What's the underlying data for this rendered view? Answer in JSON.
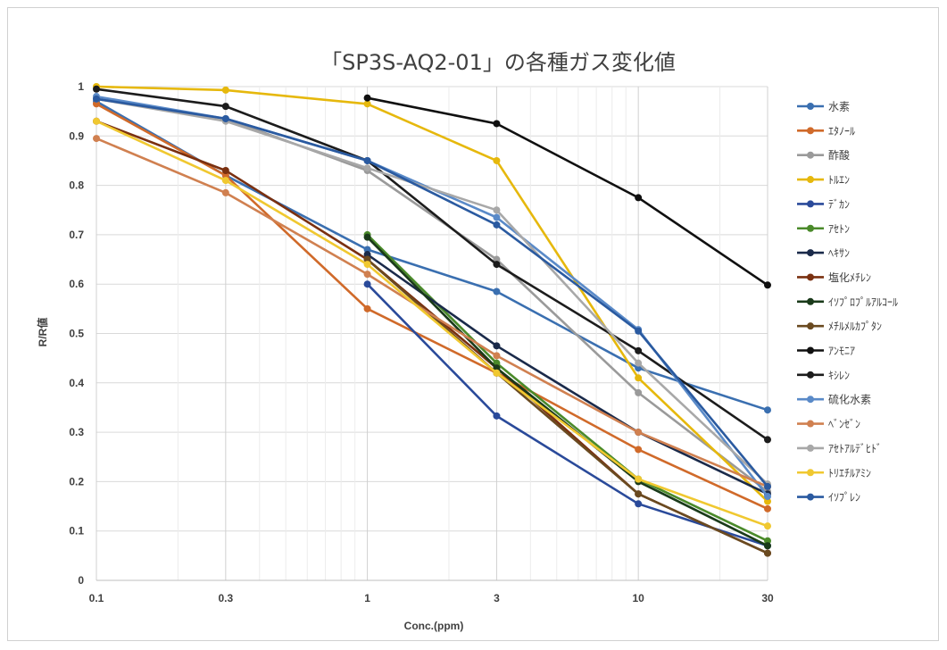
{
  "chart_data": {
    "type": "line",
    "title": "「SP3S-AQ2-01」の各種ガス変化値",
    "xlabel": "Conc.(ppm)",
    "ylabel": "R/R値",
    "x_scale": "log",
    "x_ticks": [
      "0.1",
      "0.3",
      "1",
      "3",
      "10",
      "30"
    ],
    "y_ticks": [
      "0",
      "0.1",
      "0.2",
      "0.3",
      "0.4",
      "0.5",
      "0.6",
      "0.7",
      "0.8",
      "0.9",
      "1"
    ],
    "ylim": [
      0,
      1
    ],
    "grid": true,
    "legend_position": "right",
    "series": [
      {
        "name": "水素",
        "color": "#3a6fb0",
        "x": [
          0.1,
          0.3,
          1,
          3,
          10,
          30
        ],
        "y": [
          0.97,
          0.82,
          0.67,
          0.585,
          0.43,
          0.345
        ]
      },
      {
        "name": "ｴﾀﾉｰﾙ",
        "color": "#d06a2a",
        "x": [
          0.1,
          0.3,
          1,
          3,
          10,
          30
        ],
        "y": [
          0.965,
          0.82,
          0.55,
          0.42,
          0.265,
          0.145
        ]
      },
      {
        "name": "酢酸",
        "color": "#9a9a9a",
        "x": [
          0.1,
          0.3,
          1,
          3,
          10,
          30
        ],
        "y": [
          0.975,
          0.935,
          0.83,
          0.65,
          0.38,
          0.18
        ]
      },
      {
        "name": "ﾄﾙｴﾝ",
        "color": "#e6b80c",
        "x": [
          0.1,
          0.3,
          1,
          3,
          10,
          30
        ],
        "y": [
          1.0,
          0.993,
          0.965,
          0.85,
          0.41,
          0.16
        ]
      },
      {
        "name": "ﾃﾞｶﾝ",
        "color": "#2a4a9a",
        "x": [
          1,
          3,
          10,
          30
        ],
        "y": [
          0.6,
          0.333,
          0.155,
          0.07
        ]
      },
      {
        "name": "ｱｾﾄﾝ",
        "color": "#4a8a2a",
        "x": [
          1,
          3,
          10,
          30
        ],
        "y": [
          0.7,
          0.44,
          0.205,
          0.08
        ]
      },
      {
        "name": "ﾍｷｻﾝ",
        "color": "#1a2a4a",
        "x": [
          1,
          3,
          10,
          30
        ],
        "y": [
          0.66,
          0.475,
          0.3,
          0.175
        ]
      },
      {
        "name": "塩化ﾒﾁﾚﾝ",
        "color": "#7a3010",
        "x": [
          0.1,
          0.3,
          1,
          3,
          10,
          30
        ],
        "y": [
          0.93,
          0.83,
          0.65,
          0.43,
          0.175,
          0.055
        ]
      },
      {
        "name": "ｲｿﾌﾟﾛﾌﾟﾙｱﾙｺｰﾙ",
        "color": "#1a3a1a",
        "x": [
          1,
          3,
          10,
          30
        ],
        "y": [
          0.695,
          0.43,
          0.2,
          0.07
        ]
      },
      {
        "name": "ﾒﾁﾙﾒﾙｶﾌﾟﾀﾝ",
        "color": "#6a4a20",
        "x": [
          1,
          3,
          10,
          30
        ],
        "y": [
          0.65,
          0.42,
          0.175,
          0.055
        ]
      },
      {
        "name": "ｱﾝﾓﾆｱ",
        "color": "#101010",
        "x": [
          1,
          3,
          10,
          30
        ],
        "y": [
          0.977,
          0.925,
          0.775,
          0.598
        ]
      },
      {
        "name": "ｷｼﾚﾝ",
        "color": "#1c1c1c",
        "x": [
          0.1,
          0.3,
          1,
          3,
          10,
          30
        ],
        "y": [
          0.995,
          0.96,
          0.85,
          0.64,
          0.465,
          0.285
        ]
      },
      {
        "name": "硫化水素",
        "color": "#5a8ac8",
        "x": [
          0.1,
          0.3,
          1,
          3,
          10,
          30
        ],
        "y": [
          0.98,
          0.935,
          0.85,
          0.735,
          0.508,
          0.17
        ]
      },
      {
        "name": "ﾍﾞﾝｾﾞﾝ",
        "color": "#d08050",
        "x": [
          0.1,
          0.3,
          1,
          3,
          10,
          30
        ],
        "y": [
          0.895,
          0.785,
          0.62,
          0.455,
          0.3,
          0.19
        ]
      },
      {
        "name": "ｱｾﾄｱﾙﾃﾞﾋﾄﾞ",
        "color": "#a8a8a8",
        "x": [
          0.1,
          0.3,
          1,
          3,
          10,
          30
        ],
        "y": [
          0.975,
          0.93,
          0.835,
          0.75,
          0.44,
          0.195
        ]
      },
      {
        "name": "ﾄﾘｴﾁﾙｱﾐﾝ",
        "color": "#f0c830",
        "x": [
          0.1,
          0.3,
          1,
          3,
          10,
          30
        ],
        "y": [
          0.93,
          0.81,
          0.64,
          0.42,
          0.205,
          0.11
        ]
      },
      {
        "name": "ｲｿﾌﾟﾚﾝ",
        "color": "#2a5aa0",
        "x": [
          0.1,
          0.3,
          1,
          3,
          10,
          30
        ],
        "y": [
          0.975,
          0.935,
          0.85,
          0.72,
          0.505,
          0.19
        ]
      }
    ]
  }
}
